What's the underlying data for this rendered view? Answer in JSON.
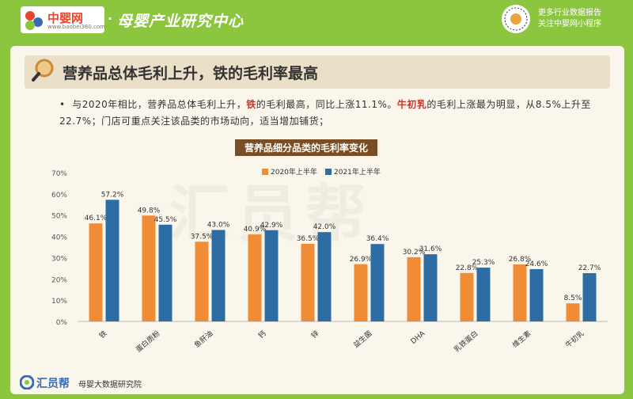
{
  "header": {
    "logo_text": "中婴网",
    "logo_url": "www.baobei360.com",
    "title": "母婴产业研究中心",
    "qr_line1": "更多行业数据报告",
    "qr_line2": "关注中婴网小程序"
  },
  "card": {
    "title": "营养品总体毛利上升，铁的毛利率最高",
    "bullet": {
      "p1": "与2020年相比，营养品总体毛利上升，",
      "em1": "铁",
      "p2": "的毛利最高，同比上涨11.1%。",
      "em2": "牛初乳",
      "p3": "的毛利上涨最为明显，从8.5%上升至22.7%；门店可重点关注该品类的市场动向，适当增加铺货；"
    }
  },
  "watermark": "汇员帮",
  "footer": {
    "brand": "汇员帮",
    "sub": "母婴大数据研究院"
  },
  "colors": {
    "series_2020": "#f08c35",
    "series_2021": "#2e6da4"
  },
  "chart_data": {
    "type": "bar",
    "title": "营养品细分品类的毛利率变化",
    "categories": [
      "铁",
      "蛋白质粉",
      "鱼肝油",
      "钙",
      "锌",
      "益生菌",
      "DHA",
      "乳铁蛋白",
      "维生素",
      "牛初乳"
    ],
    "series": [
      {
        "name": "2020年上半年",
        "values": [
          46.1,
          49.8,
          37.5,
          40.9,
          36.5,
          26.9,
          30.2,
          22.8,
          26.8,
          8.5
        ]
      },
      {
        "name": "2021年上半年",
        "values": [
          57.2,
          45.5,
          43.0,
          42.9,
          42.0,
          36.4,
          31.6,
          25.3,
          24.6,
          22.7
        ]
      }
    ],
    "ylim": [
      0,
      70
    ],
    "yticks": [
      "0%",
      "10%",
      "20%",
      "30%",
      "40%",
      "50%",
      "60%",
      "70%"
    ],
    "xlabel": "",
    "ylabel": "",
    "legend_position": "top-right",
    "grid": false
  }
}
